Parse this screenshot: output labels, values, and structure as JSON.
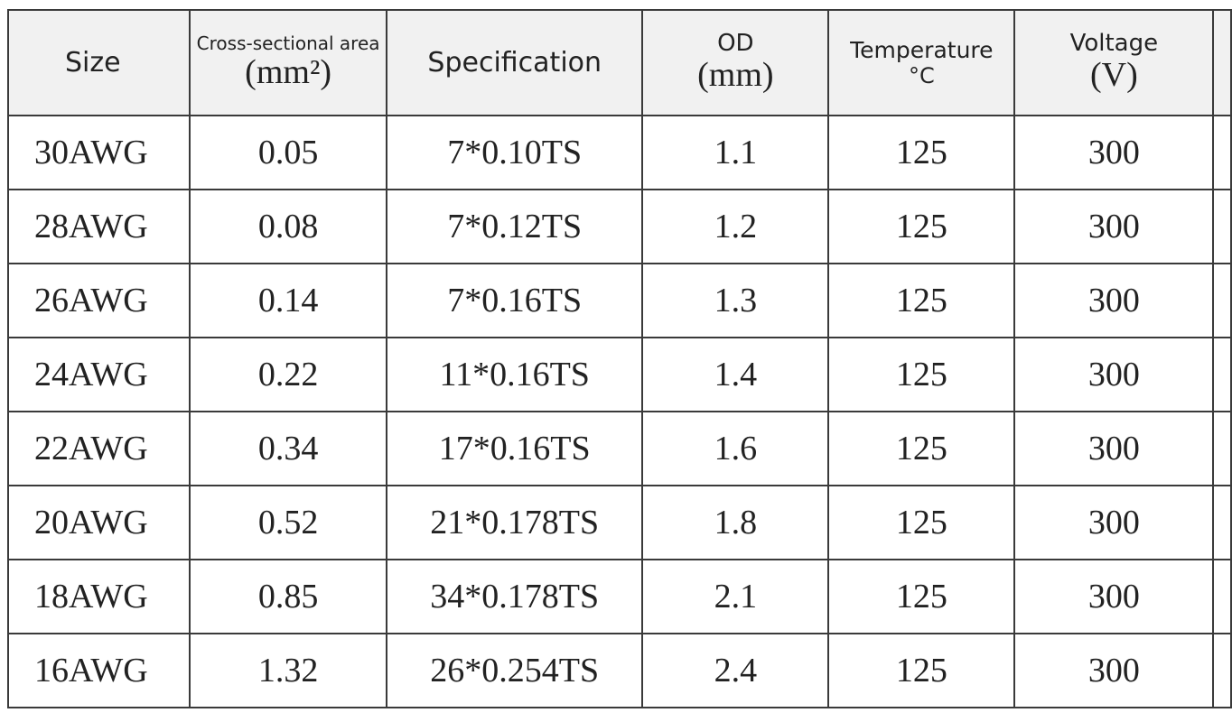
{
  "table": {
    "headers": {
      "size": "Size",
      "area_title": "Cross-sectional area",
      "area_unit": "(mm²)",
      "spec": "Specification",
      "od_title": "OD",
      "od_unit": "(mm)",
      "temp_title": "Temperature",
      "temp_unit": "°C",
      "voltage_title": "Voltage",
      "voltage_unit": "(V)"
    },
    "rows": [
      {
        "size": "30AWG",
        "area": "0.05",
        "spec": "7*0.10TS",
        "od": "1.1",
        "temp": "125",
        "voltage": "300"
      },
      {
        "size": "28AWG",
        "area": "0.08",
        "spec": "7*0.12TS",
        "od": "1.2",
        "temp": "125",
        "voltage": "300"
      },
      {
        "size": "26AWG",
        "area": "0.14",
        "spec": "7*0.16TS",
        "od": "1.3",
        "temp": "125",
        "voltage": "300"
      },
      {
        "size": "24AWG",
        "area": "0.22",
        "spec": "11*0.16TS",
        "od": "1.4",
        "temp": "125",
        "voltage": "300"
      },
      {
        "size": "22AWG",
        "area": "0.34",
        "spec": "17*0.16TS",
        "od": "1.6",
        "temp": "125",
        "voltage": "300"
      },
      {
        "size": "20AWG",
        "area": "0.52",
        "spec": "21*0.178TS",
        "od": "1.8",
        "temp": "125",
        "voltage": "300"
      },
      {
        "size": "18AWG",
        "area": "0.85",
        "spec": "34*0.178TS",
        "od": "2.1",
        "temp": "125",
        "voltage": "300"
      },
      {
        "size": "16AWG",
        "area": "1.32",
        "spec": "26*0.254TS",
        "od": "2.4",
        "temp": "125",
        "voltage": "300"
      }
    ]
  }
}
